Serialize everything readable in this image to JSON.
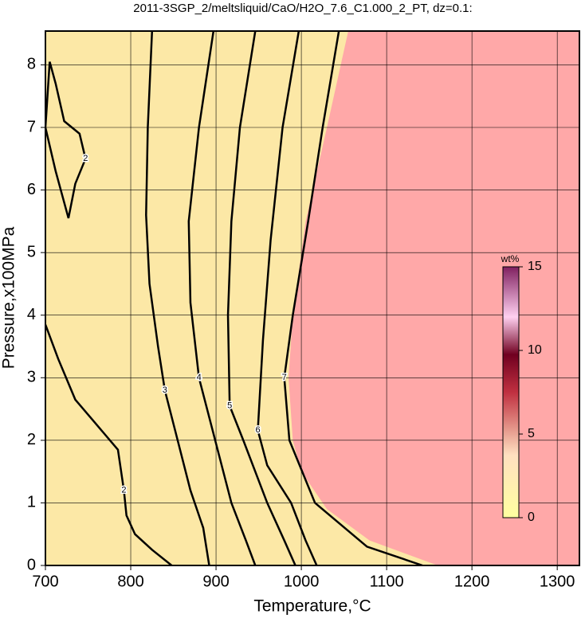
{
  "chart_data": {
    "type": "contour",
    "title": "2011-3SGP_2/meltsliquid/CaO/H2O_7.6_C1.000_2_PT, dz=0.1:",
    "x_label": "Temperature,°C",
    "y_label": "Pressure,x100MPa",
    "xlim": [
      700,
      1326
    ],
    "ylim": [
      0,
      8.54
    ],
    "xticks": [
      700,
      800,
      900,
      1000,
      1100,
      1200,
      1300
    ],
    "yticks": [
      0,
      1,
      2,
      3,
      4,
      5,
      6,
      7,
      8
    ],
    "grid": true,
    "background": "#fce8a6",
    "regions": [
      {
        "color": "#ffa8a8",
        "x": [
          1055,
          1030,
          1005,
          990,
          985,
          990,
          1000,
          1030,
          1080,
          1130,
          1160
        ],
        "y": [
          8.54,
          7,
          5.5,
          4,
          3,
          2,
          1.5,
          0.9,
          0.4,
          0.15,
          0
        ]
      }
    ],
    "contours": [
      {
        "level": 2,
        "x": [
          700,
          715,
          735,
          760,
          785,
          792,
          795,
          805,
          825,
          848
        ],
        "y": [
          3.85,
          3.3,
          2.65,
          2.25,
          1.85,
          1.2,
          0.8,
          0.5,
          0.25,
          0
        ]
      },
      {
        "level": 2,
        "x": [
          705,
          700,
          712,
          727,
          735,
          747,
          740,
          722,
          712,
          705
        ],
        "y": [
          8.05,
          7.0,
          6.3,
          5.55,
          6.1,
          6.5,
          6.9,
          7.1,
          7.7,
          8.05
        ]
      },
      {
        "level": 3,
        "x": [
          825,
          820,
          818,
          822,
          832,
          840,
          855,
          870,
          885,
          892
        ],
        "y": [
          8.54,
          7,
          5.6,
          4.5,
          3.5,
          2.8,
          2.0,
          1.2,
          0.6,
          0
        ]
      },
      {
        "level": 4,
        "x": [
          897,
          880,
          868,
          870,
          880,
          899,
          918,
          935,
          946
        ],
        "y": [
          8.54,
          7,
          5.5,
          4.2,
          3,
          2,
          1,
          0.4,
          0
        ]
      },
      {
        "level": 5,
        "x": [
          946,
          928,
          918,
          914,
          916,
          932,
          960,
          980,
          993
        ],
        "y": [
          8.54,
          7,
          5.5,
          4.0,
          2.55,
          2,
          1,
          0.4,
          0
        ]
      },
      {
        "level": 6,
        "x": [
          997,
          978,
          964,
          955,
          949,
          960,
          988,
          1005,
          1018
        ],
        "y": [
          8.54,
          7,
          5.2,
          3.6,
          2.16,
          1.6,
          1,
          0.4,
          0
        ]
      },
      {
        "level": 7,
        "x": [
          1044,
          1025,
          1008,
          990,
          980,
          986,
          1016,
          1077,
          1142
        ],
        "y": [
          8.54,
          7,
          5.5,
          4,
          3,
          2,
          1,
          0.3,
          0
        ]
      }
    ],
    "colorbar": {
      "title": "wt%",
      "lim": [
        0,
        15
      ],
      "ticks": [
        0,
        5,
        10,
        15
      ]
    }
  }
}
